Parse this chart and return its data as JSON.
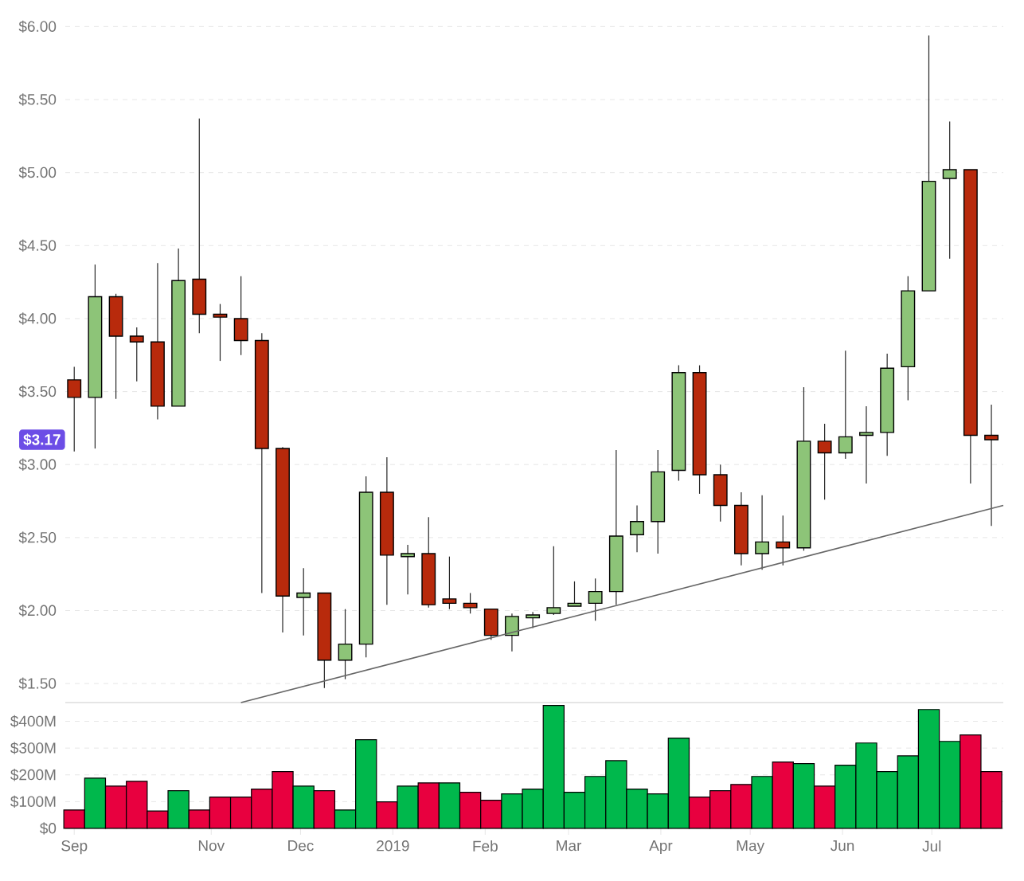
{
  "chart_data": [
    {
      "type": "candlestick",
      "x": [
        "2018-09-16",
        "2018-09-23",
        "2018-09-30",
        "2018-10-07",
        "2018-10-14",
        "2018-10-21",
        "2018-10-28",
        "2018-11-04",
        "2018-11-11",
        "2018-11-18",
        "2018-11-25",
        "2018-12-02",
        "2018-12-09",
        "2018-12-16",
        "2018-12-23",
        "2018-12-30",
        "2019-01-06",
        "2019-01-13",
        "2019-01-20",
        "2019-01-27",
        "2019-02-03",
        "2019-02-10",
        "2019-02-17",
        "2019-02-24",
        "2019-03-03",
        "2019-03-10",
        "2019-03-17",
        "2019-03-24",
        "2019-03-31",
        "2019-04-07",
        "2019-04-14",
        "2019-04-21",
        "2019-04-28",
        "2019-05-05",
        "2019-05-12",
        "2019-05-19",
        "2019-05-26",
        "2019-06-02",
        "2019-06-09",
        "2019-06-16",
        "2019-06-23",
        "2019-06-30",
        "2019-07-07",
        "2019-07-14",
        "2019-07-21"
      ],
      "ohlc": [
        [
          3.58,
          3.67,
          3.09,
          3.46
        ],
        [
          3.46,
          4.37,
          3.11,
          4.15
        ],
        [
          4.15,
          4.17,
          3.45,
          3.88
        ],
        [
          3.88,
          3.94,
          3.57,
          3.84
        ],
        [
          3.84,
          4.38,
          3.31,
          3.4
        ],
        [
          3.4,
          4.48,
          3.4,
          4.26
        ],
        [
          4.27,
          5.37,
          3.9,
          4.03
        ],
        [
          4.03,
          4.1,
          3.71,
          4.01
        ],
        [
          4.0,
          4.29,
          3.75,
          3.85
        ],
        [
          3.85,
          3.9,
          2.12,
          3.11
        ],
        [
          3.11,
          3.12,
          1.85,
          2.1
        ],
        [
          2.09,
          2.29,
          1.83,
          2.12
        ],
        [
          2.12,
          2.12,
          1.47,
          1.66
        ],
        [
          1.66,
          2.01,
          1.53,
          1.77
        ],
        [
          1.77,
          2.92,
          1.68,
          2.81
        ],
        [
          2.81,
          3.05,
          2.04,
          2.38
        ],
        [
          2.37,
          2.45,
          2.11,
          2.39
        ],
        [
          2.39,
          2.64,
          2.02,
          2.04
        ],
        [
          2.08,
          2.37,
          2.01,
          2.05
        ],
        [
          2.05,
          2.12,
          1.98,
          2.02
        ],
        [
          2.01,
          2.01,
          1.8,
          1.83
        ],
        [
          1.83,
          1.98,
          1.72,
          1.96
        ],
        [
          1.95,
          1.99,
          1.88,
          1.97
        ],
        [
          1.98,
          2.44,
          1.97,
          2.02
        ],
        [
          2.03,
          2.2,
          2.03,
          2.05
        ],
        [
          2.05,
          2.22,
          1.93,
          2.13
        ],
        [
          2.13,
          3.1,
          2.04,
          2.51
        ],
        [
          2.52,
          2.72,
          2.4,
          2.61
        ],
        [
          2.61,
          3.1,
          2.39,
          2.95
        ],
        [
          2.96,
          3.68,
          2.89,
          3.63
        ],
        [
          3.63,
          3.68,
          2.8,
          2.93
        ],
        [
          2.93,
          3.0,
          2.61,
          2.72
        ],
        [
          2.72,
          2.81,
          2.31,
          2.39
        ],
        [
          2.39,
          2.79,
          2.28,
          2.47
        ],
        [
          2.47,
          2.65,
          2.31,
          2.43
        ],
        [
          2.43,
          3.53,
          2.41,
          3.16
        ],
        [
          3.16,
          3.28,
          2.76,
          3.08
        ],
        [
          3.08,
          3.78,
          3.04,
          3.19
        ],
        [
          3.2,
          3.4,
          2.87,
          3.22
        ],
        [
          3.22,
          3.76,
          3.06,
          3.66
        ],
        [
          3.67,
          4.29,
          3.44,
          4.19
        ],
        [
          4.19,
          5.94,
          4.19,
          4.94
        ],
        [
          4.96,
          5.35,
          4.41,
          5.02
        ],
        [
          5.02,
          5.02,
          2.87,
          3.2
        ],
        [
          3.2,
          3.41,
          2.58,
          3.17
        ]
      ],
      "colors": [
        "#b82a0c",
        "#8dc478",
        "#b82a0c",
        "#b82a0c",
        "#b82a0c",
        "#8dc478",
        "#b82a0c",
        "#b82a0c",
        "#b82a0c",
        "#b82a0c",
        "#b82a0c",
        "#8dc478",
        "#b82a0c",
        "#8dc478",
        "#8dc478",
        "#b82a0c",
        "#8dc478",
        "#b82a0c",
        "#b82a0c",
        "#b82a0c",
        "#b82a0c",
        "#8dc478",
        "#8dc478",
        "#8dc478",
        "#8dc478",
        "#8dc478",
        "#8dc478",
        "#8dc478",
        "#8dc478",
        "#8dc478",
        "#b82a0c",
        "#b82a0c",
        "#b82a0c",
        "#8dc478",
        "#b82a0c",
        "#8dc478",
        "#b82a0c",
        "#8dc478",
        "#8dc478",
        "#8dc478",
        "#8dc478",
        "#8dc478",
        "#8dc478",
        "#b82a0c",
        "#b82a0c"
      ],
      "series": [
        {
          "type": "line",
          "x": [
            "2018-11-11",
            "2019-07-25"
          ],
          "values": [
            1.37,
            2.72
          ],
          "color": "#666666"
        }
      ],
      "xlim": [
        "2018-09-13",
        "2019-07-25"
      ],
      "ylim": [
        1.37,
        6
      ],
      "yticks": [
        {
          "value": 1.5,
          "label": "$1.50"
        },
        {
          "value": 2,
          "label": "$2.00"
        },
        {
          "value": 2.5,
          "label": "$2.50"
        },
        {
          "value": 3,
          "label": "$3.00"
        },
        {
          "value": 3.5,
          "label": "$3.50"
        },
        {
          "value": 4,
          "label": "$4.00"
        },
        {
          "value": 4.5,
          "label": "$4.50"
        },
        {
          "value": 5,
          "label": "$5.00"
        },
        {
          "value": 5.5,
          "label": "$5.50"
        },
        {
          "value": 6,
          "label": "$6.00"
        }
      ],
      "annotations": [
        "$3.17"
      ],
      "grid": "y",
      "tick_labels": "y"
    },
    {
      "type": "bar",
      "x": [
        "2018-09-16",
        "2018-09-23",
        "2018-09-30",
        "2018-10-07",
        "2018-10-14",
        "2018-10-21",
        "2018-10-28",
        "2018-11-04",
        "2018-11-11",
        "2018-11-18",
        "2018-11-25",
        "2018-12-02",
        "2018-12-09",
        "2018-12-16",
        "2018-12-23",
        "2018-12-30",
        "2019-01-06",
        "2019-01-13",
        "2019-01-20",
        "2019-01-27",
        "2019-02-03",
        "2019-02-10",
        "2019-02-17",
        "2019-02-24",
        "2019-03-03",
        "2019-03-10",
        "2019-03-17",
        "2019-03-24",
        "2019-03-31",
        "2019-04-07",
        "2019-04-14",
        "2019-04-21",
        "2019-04-28",
        "2019-05-05",
        "2019-05-12",
        "2019-05-19",
        "2019-05-26",
        "2019-06-02",
        "2019-06-09",
        "2019-06-16",
        "2019-06-23",
        "2019-06-30",
        "2019-07-07",
        "2019-07-14",
        "2019-07-21"
      ],
      "values": [
        69,
        188,
        158,
        176,
        65,
        141,
        69,
        117,
        117,
        147,
        212,
        158,
        141,
        69,
        331,
        99,
        158,
        170,
        170,
        135,
        105,
        129,
        147,
        459,
        135,
        194,
        253,
        147,
        129,
        337,
        117,
        141,
        164,
        194,
        248,
        242,
        158,
        236,
        319,
        212,
        271,
        444,
        325,
        349,
        212
      ],
      "colors": [
        "#e8003f",
        "#00b84c",
        "#e8003f",
        "#e8003f",
        "#e8003f",
        "#00b84c",
        "#e8003f",
        "#e8003f",
        "#e8003f",
        "#e8003f",
        "#e8003f",
        "#00b84c",
        "#e8003f",
        "#00b84c",
        "#00b84c",
        "#e8003f",
        "#00b84c",
        "#e8003f",
        "#00b84c",
        "#e8003f",
        "#e8003f",
        "#00b84c",
        "#00b84c",
        "#00b84c",
        "#00b84c",
        "#00b84c",
        "#00b84c",
        "#00b84c",
        "#00b84c",
        "#00b84c",
        "#e8003f",
        "#e8003f",
        "#e8003f",
        "#00b84c",
        "#e8003f",
        "#00b84c",
        "#e8003f",
        "#00b84c",
        "#00b84c",
        "#00b84c",
        "#00b84c",
        "#00b84c",
        "#00b84c",
        "#e8003f",
        "#e8003f"
      ],
      "xlim": [
        "2018-09-13",
        "2019-07-25"
      ],
      "ylim": [
        0,
        460
      ],
      "xticks": [
        {
          "value": "2018-09-16",
          "label": "Sep"
        },
        {
          "value": "2018-11-01",
          "label": "Nov"
        },
        {
          "value": "2018-12-01",
          "label": "Dec"
        },
        {
          "value": "2019-01-01",
          "label": "2019"
        },
        {
          "value": "2019-02-01",
          "label": "Feb"
        },
        {
          "value": "2019-03-01",
          "label": "Mar"
        },
        {
          "value": "2019-04-01",
          "label": "Apr"
        },
        {
          "value": "2019-05-01",
          "label": "May"
        },
        {
          "value": "2019-06-01",
          "label": "Jun"
        },
        {
          "value": "2019-07-01",
          "label": "Jul"
        }
      ],
      "yticks": [
        {
          "value": 0,
          "label": "$0"
        },
        {
          "value": 100,
          "label": "$100M"
        },
        {
          "value": 200,
          "label": "$200M"
        },
        {
          "value": 300,
          "label": "$300M"
        },
        {
          "value": 400,
          "label": "$400M"
        }
      ],
      "grid": "y"
    }
  ]
}
